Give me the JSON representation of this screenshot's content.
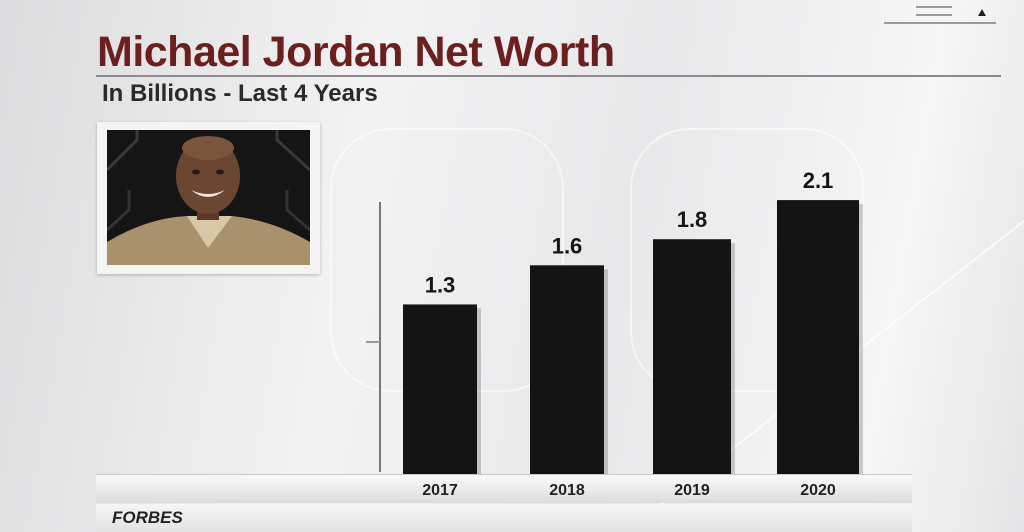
{
  "chart_data": {
    "type": "bar",
    "title": "Michael Jordan Net Worth",
    "subtitle": "In Billions - Last 4 Years",
    "categories": [
      "2017",
      "2018",
      "2019",
      "2020"
    ],
    "values": [
      1.3,
      1.6,
      1.8,
      2.1
    ],
    "data_labels": [
      "1.3",
      "1.6",
      "1.8",
      "2.1"
    ],
    "ylim": [
      0,
      2.3
    ],
    "bar_color": "#141414",
    "grid": false
  },
  "source": "FORBES",
  "colors": {
    "title": "#6b1f1f",
    "bar": "#141414"
  },
  "photo": {
    "icon": "headshot-photo"
  }
}
